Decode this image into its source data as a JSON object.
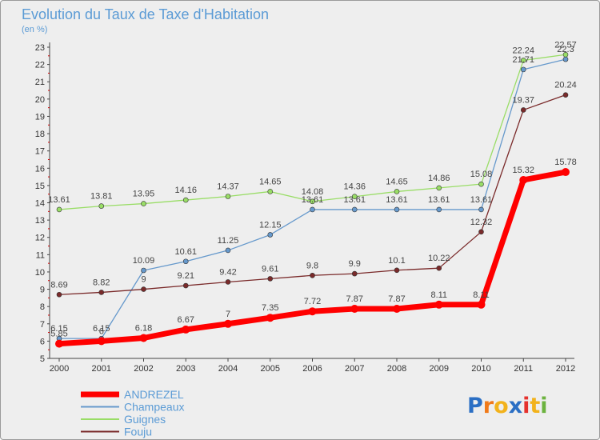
{
  "chart_data": {
    "type": "line",
    "title": "Evolution du Taux de Taxe d'Habitation",
    "subtitle": "(en %)",
    "x": [
      "2000",
      "2001",
      "2002",
      "2003",
      "2004",
      "2005",
      "2006",
      "2007",
      "2008",
      "2009",
      "2010",
      "2011",
      "2012"
    ],
    "ylim": [
      5,
      23
    ],
    "yticks": [
      5,
      6,
      7,
      8,
      9,
      10,
      11,
      12,
      13,
      14,
      15,
      16,
      17,
      18,
      19,
      20,
      21,
      22,
      23
    ],
    "grid": false,
    "legend_position": "bottom-left",
    "series": [
      {
        "name": "ANDREZEL",
        "color": "#ff0000",
        "values": [
          5.85,
          6.0,
          6.18,
          6.67,
          7.0,
          7.35,
          7.72,
          7.87,
          7.87,
          8.11,
          8.11,
          15.32,
          15.78
        ],
        "labels": [
          "5.85",
          "6",
          "6.18",
          "6.67",
          "7",
          "7.35",
          "7.72",
          "7.87",
          "7.87",
          "8.11",
          "8.11",
          "15.32",
          "15.78"
        ]
      },
      {
        "name": "Champeaux",
        "color": "#6699cc",
        "values": [
          6.15,
          6.15,
          10.09,
          10.61,
          11.25,
          12.15,
          13.61,
          13.61,
          13.61,
          13.61,
          13.61,
          21.71,
          22.3
        ],
        "labels": [
          "6.15",
          "6.15",
          "10.09",
          "10.61",
          "11.25",
          "12.15",
          "13.61",
          "13.61",
          "13.61",
          "13.61",
          "13.61",
          "21.71",
          "22.3"
        ]
      },
      {
        "name": "Guignes",
        "color": "#99dd66",
        "values": [
          13.61,
          13.81,
          13.95,
          14.16,
          14.37,
          14.65,
          14.08,
          14.36,
          14.65,
          14.86,
          15.08,
          22.24,
          22.57
        ],
        "labels": [
          "13.61",
          "13.81",
          "13.95",
          "14.16",
          "14.37",
          "14.65",
          "14.08",
          "14.36",
          "14.65",
          "14.86",
          "15.08",
          "22.24",
          "22.57"
        ]
      },
      {
        "name": "Fouju",
        "color": "#7a2a2a",
        "values": [
          8.69,
          8.82,
          9.0,
          9.21,
          9.42,
          9.61,
          9.8,
          9.9,
          10.1,
          10.22,
          12.32,
          19.37,
          20.24
        ],
        "labels": [
          "8.69",
          "8.82",
          "9",
          "9.21",
          "9.42",
          "9.61",
          "9.8",
          "9.9",
          "10.1",
          "10.22",
          "12.32",
          "19.37",
          "20.24"
        ]
      }
    ]
  },
  "logo": {
    "text": "Proxiti",
    "letters": [
      "P",
      "r",
      "o",
      "x",
      "i",
      "t",
      "i"
    ],
    "colors": [
      "#2b6fc4",
      "#f07a1a",
      "#f2b21b",
      "#2b6fc4",
      "#e5322d",
      "#f2b21b",
      "#6cb33f"
    ]
  }
}
